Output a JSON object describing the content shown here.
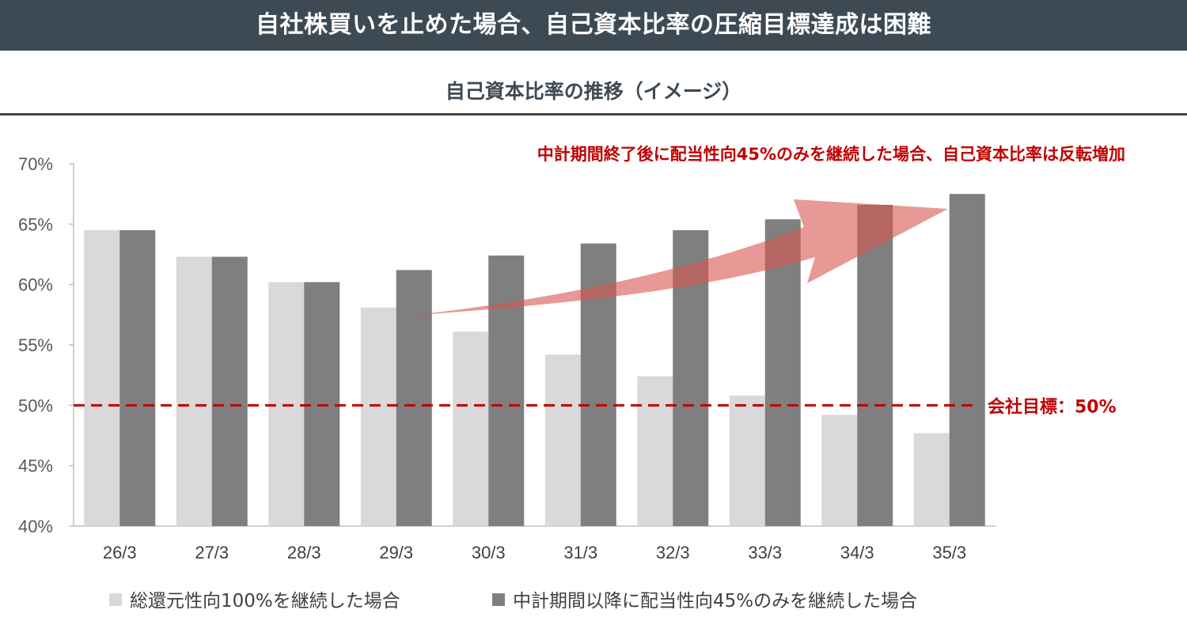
{
  "header": {
    "title": "自社株買いを止めた場合、自己資本比率の圧縮目標達成は困難"
  },
  "colors": {
    "header_bg": "#3d4a54",
    "series_light": "#d9d9d9",
    "series_dark": "#7f7f7f",
    "accent_red": "#c00000",
    "arrow_fill": "#d9534f"
  },
  "chart_data": {
    "type": "bar",
    "title": "自己資本比率の推移（イメージ）",
    "annotation": "中計期間終了後に配当性向45%のみを継続した場合、自己資本比率は反転増加",
    "target_label": "会社目標：50%",
    "target_value": 50,
    "categories": [
      "26/3",
      "27/3",
      "28/3",
      "29/3",
      "30/3",
      "31/3",
      "32/3",
      "33/3",
      "34/3",
      "35/3"
    ],
    "series": [
      {
        "name": "総還元性向100%を継続した場合",
        "values": [
          64.5,
          62.3,
          60.2,
          58.1,
          56.1,
          54.2,
          52.4,
          50.8,
          49.2,
          47.7
        ]
      },
      {
        "name": "中計期間以降に配当性向45%のみを継続した場合",
        "values": [
          64.5,
          62.3,
          60.2,
          61.2,
          62.4,
          63.4,
          64.5,
          65.4,
          66.6,
          67.5
        ]
      }
    ],
    "yticks": [
      "40%",
      "45%",
      "50%",
      "55%",
      "60%",
      "65%",
      "70%"
    ],
    "ylim": [
      40,
      70
    ],
    "grid": false,
    "legend_position": "bottom"
  }
}
